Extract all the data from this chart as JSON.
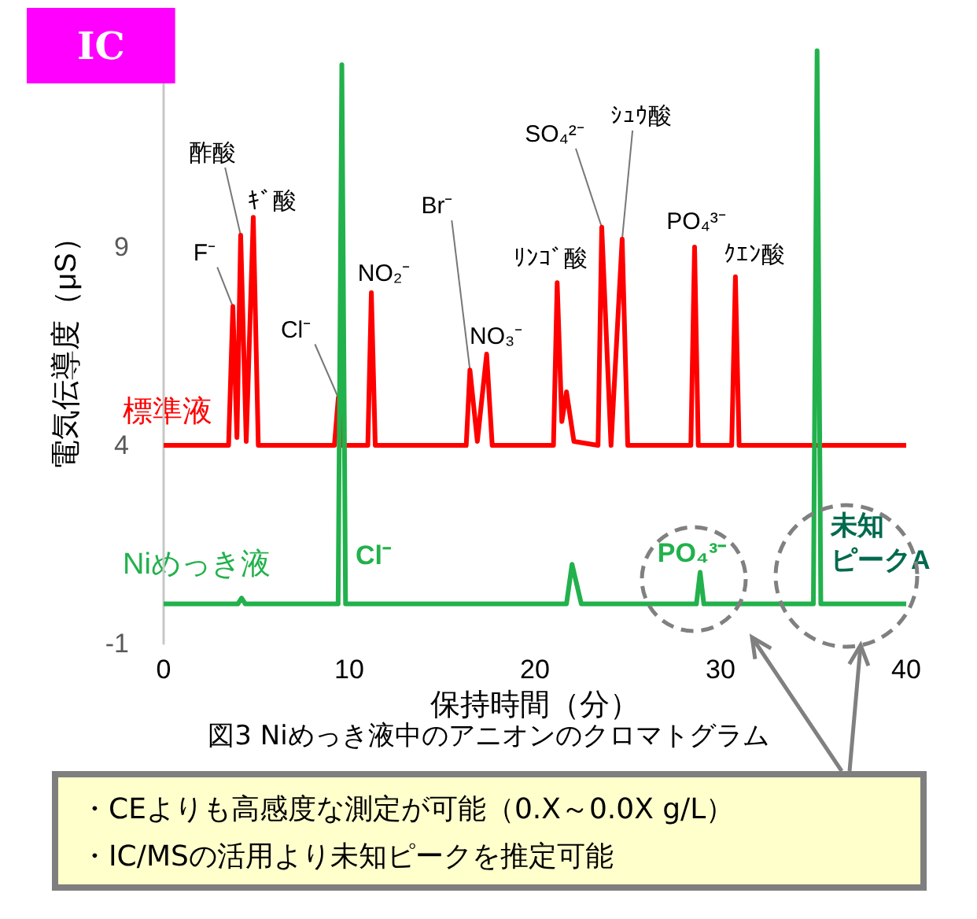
{
  "chart_data": {
    "type": "line",
    "title": "IC",
    "xlabel": "保持時間（分）",
    "ylabel": "電気伝導度（μS）",
    "xlim": [
      0,
      40
    ],
    "xticks": [
      0,
      10,
      20,
      30,
      40
    ],
    "ylim": [
      -1,
      14
    ],
    "yticks": [
      -1,
      4,
      9
    ],
    "grid": false,
    "marker": "none",
    "line_style": "solid",
    "series": [
      {
        "name": "標準液",
        "color": "#ff0000",
        "x": [
          0,
          3.5,
          3.73,
          3.95,
          4.15,
          4.45,
          4.83,
          5.1,
          9.2,
          9.41,
          9.6,
          11.0,
          11.19,
          11.4,
          16.3,
          16.5,
          16.9,
          17.4,
          17.7,
          21.0,
          21.2,
          21.45,
          21.7,
          22.1,
          23.4,
          23.6,
          24.1,
          24.7,
          25.0,
          28.4,
          28.6,
          28.8,
          30.6,
          30.8,
          31.0,
          40
        ],
        "values": [
          4,
          4,
          7.5,
          4.2,
          9.3,
          4.1,
          9.75,
          4,
          4,
          5.2,
          4,
          4,
          7.85,
          4,
          4,
          5.9,
          4.1,
          6.3,
          4,
          4,
          8.1,
          4.6,
          5.35,
          4.1,
          4,
          9.5,
          4,
          9.2,
          4,
          4,
          9.0,
          4,
          4,
          8.25,
          4,
          4
        ]
      },
      {
        "name": "Niめっき液",
        "color": "#22b14c",
        "x": [
          0,
          4.0,
          4.2,
          4.4,
          9.4,
          9.6,
          9.8,
          21.7,
          22.0,
          22.5,
          28.7,
          28.9,
          29.1,
          35.0,
          35.2,
          35.4,
          40
        ],
        "values": [
          0,
          0,
          0.15,
          0,
          0,
          13.6,
          0,
          0,
          1.0,
          0,
          0,
          0.8,
          0,
          0,
          13.95,
          0,
          0
        ]
      }
    ],
    "annotations": [
      {
        "text": "F⁻",
        "x": 3.73,
        "y": 7.5
      },
      {
        "text": "酢酸",
        "x": 4.15,
        "y": 9.3
      },
      {
        "text": "ｷﾞ酸",
        "x": 4.83,
        "y": 9.75
      },
      {
        "text": "Cl⁻",
        "x": 9.41,
        "y": 5.2
      },
      {
        "text": "NO₂⁻",
        "x": 11.19,
        "y": 7.85
      },
      {
        "text": "Br⁻",
        "x": 16.5,
        "y": 5.9
      },
      {
        "text": "NO₃⁻",
        "x": 17.4,
        "y": 6.3
      },
      {
        "text": "ﾘﾝｺﾞ酸",
        "x": 21.2,
        "y": 8.1
      },
      {
        "text": "SO₄²⁻",
        "x": 23.6,
        "y": 9.5
      },
      {
        "text": "ｼｭｳ酸",
        "x": 24.7,
        "y": 9.2
      },
      {
        "text": "PO₄³⁻",
        "x": 28.6,
        "y": 9.0
      },
      {
        "text": "ｸｴﾝ酸",
        "x": 30.8,
        "y": 8.25
      },
      "Cl⁻",
      {
        "text": "PO₄³⁻",
        "x": 28.9,
        "y": 0.8
      },
      "未知ピークA",
      "図3  Niめっき液中のアニオンのクロマトグラム",
      "・CEよりも高感度な測定が可能（0.X～0.0X g/L）",
      "・IC/MSの活用より未知ピークを推定可能"
    ]
  }
}
